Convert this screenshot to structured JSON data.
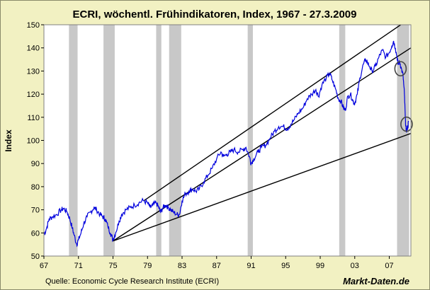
{
  "chart_data": {
    "type": "line",
    "title": "ECRI, wöchentl. Frühindikatoren, Index, 1967 - 27.3.2009",
    "xlabel": "",
    "ylabel": "Index",
    "xlim": [
      1967,
      2009.5
    ],
    "ylim": [
      50,
      150
    ],
    "y_ticks": [
      50,
      60,
      70,
      80,
      90,
      100,
      110,
      120,
      130,
      140,
      150
    ],
    "x_ticks": [
      {
        "value": 1967,
        "label": "67"
      },
      {
        "value": 1971,
        "label": "71"
      },
      {
        "value": 1975,
        "label": "75"
      },
      {
        "value": 1979,
        "label": "79"
      },
      {
        "value": 1983,
        "label": "83"
      },
      {
        "value": 1987,
        "label": "87"
      },
      {
        "value": 1991,
        "label": "91"
      },
      {
        "value": 1995,
        "label": "95"
      },
      {
        "value": 1999,
        "label": "99"
      },
      {
        "value": 2003,
        "label": "03"
      },
      {
        "value": 2007,
        "label": "07"
      }
    ],
    "recessions": [
      [
        1969.9,
        1970.9
      ],
      [
        1973.9,
        1975.2
      ],
      [
        1980.0,
        1980.6
      ],
      [
        1981.5,
        1982.9
      ],
      [
        1990.6,
        1991.2
      ],
      [
        2001.2,
        2001.9
      ],
      [
        2007.9,
        2009.3
      ]
    ],
    "series": [
      {
        "name": "ECRI",
        "color": "#0000dd",
        "points": [
          [
            1967.0,
            59
          ],
          [
            1967.3,
            62
          ],
          [
            1967.6,
            66
          ],
          [
            1968.0,
            67
          ],
          [
            1968.5,
            68
          ],
          [
            1969.0,
            70
          ],
          [
            1969.3,
            70.5
          ],
          [
            1969.7,
            69
          ],
          [
            1970.0,
            66
          ],
          [
            1970.3,
            62
          ],
          [
            1970.5,
            59
          ],
          [
            1970.8,
            55
          ],
          [
            1971.0,
            57
          ],
          [
            1971.3,
            60
          ],
          [
            1971.6,
            64
          ],
          [
            1972.0,
            67
          ],
          [
            1972.4,
            69
          ],
          [
            1972.8,
            71
          ],
          [
            1973.1,
            70
          ],
          [
            1973.5,
            68
          ],
          [
            1973.8,
            67
          ],
          [
            1974.1,
            66
          ],
          [
            1974.4,
            63
          ],
          [
            1974.7,
            60
          ],
          [
            1975.0,
            57
          ],
          [
            1975.3,
            60
          ],
          [
            1975.7,
            65
          ],
          [
            1976.0,
            68
          ],
          [
            1976.5,
            70
          ],
          [
            1977.0,
            71
          ],
          [
            1977.5,
            72
          ],
          [
            1978.0,
            73
          ],
          [
            1978.5,
            74
          ],
          [
            1979.0,
            73
          ],
          [
            1979.3,
            71
          ],
          [
            1979.6,
            72
          ],
          [
            1980.0,
            73
          ],
          [
            1980.3,
            71
          ],
          [
            1980.5,
            69
          ],
          [
            1980.8,
            71
          ],
          [
            1981.1,
            72
          ],
          [
            1981.4,
            71
          ],
          [
            1981.7,
            70
          ],
          [
            1982.0,
            69
          ],
          [
            1982.4,
            68
          ],
          [
            1982.7,
            68
          ],
          [
            1983.0,
            74
          ],
          [
            1983.4,
            77
          ],
          [
            1983.8,
            78
          ],
          [
            1984.2,
            79
          ],
          [
            1984.6,
            78
          ],
          [
            1985.0,
            79
          ],
          [
            1985.5,
            82
          ],
          [
            1986.0,
            85
          ],
          [
            1986.5,
            88
          ],
          [
            1987.0,
            92
          ],
          [
            1987.5,
            95
          ],
          [
            1987.8,
            93
          ],
          [
            1988.2,
            94
          ],
          [
            1988.6,
            95
          ],
          [
            1989.0,
            96
          ],
          [
            1989.5,
            95
          ],
          [
            1990.0,
            96
          ],
          [
            1990.4,
            97
          ],
          [
            1990.8,
            93
          ],
          [
            1991.0,
            90
          ],
          [
            1991.3,
            92
          ],
          [
            1991.8,
            95
          ],
          [
            1992.2,
            97
          ],
          [
            1992.7,
            98
          ],
          [
            1993.2,
            101
          ],
          [
            1993.7,
            104
          ],
          [
            1994.2,
            106
          ],
          [
            1994.7,
            106
          ],
          [
            1995.2,
            105
          ],
          [
            1995.6,
            107
          ],
          [
            1996.0,
            109
          ],
          [
            1996.5,
            112
          ],
          [
            1997.0,
            114
          ],
          [
            1997.5,
            118
          ],
          [
            1998.0,
            120
          ],
          [
            1998.5,
            122
          ],
          [
            1998.8,
            119
          ],
          [
            1999.2,
            124
          ],
          [
            1999.7,
            127
          ],
          [
            2000.1,
            129
          ],
          [
            2000.4,
            126
          ],
          [
            2000.8,
            122
          ],
          [
            2001.1,
            118
          ],
          [
            2001.4,
            117
          ],
          [
            2001.7,
            114
          ],
          [
            2001.9,
            113
          ],
          [
            2002.2,
            119
          ],
          [
            2002.5,
            120
          ],
          [
            2002.8,
            117
          ],
          [
            2003.0,
            116
          ],
          [
            2003.3,
            120
          ],
          [
            2003.6,
            127
          ],
          [
            2004.0,
            133
          ],
          [
            2004.3,
            135
          ],
          [
            2004.7,
            132
          ],
          [
            2005.0,
            130
          ],
          [
            2005.4,
            132
          ],
          [
            2005.8,
            136
          ],
          [
            2006.2,
            139
          ],
          [
            2006.6,
            136
          ],
          [
            2007.0,
            138
          ],
          [
            2007.3,
            141
          ],
          [
            2007.5,
            143
          ],
          [
            2007.7,
            140
          ],
          [
            2007.9,
            136
          ],
          [
            2008.0,
            133
          ],
          [
            2008.2,
            134
          ],
          [
            2008.4,
            131
          ],
          [
            2008.6,
            128
          ],
          [
            2008.75,
            120
          ],
          [
            2008.85,
            110
          ],
          [
            2008.95,
            104
          ],
          [
            2009.05,
            105
          ],
          [
            2009.15,
            106
          ],
          [
            2009.23,
            108
          ]
        ]
      }
    ],
    "trend_lines": [
      {
        "from": [
          1975.0,
          56.5
        ],
        "to": [
          2009.5,
          103
        ]
      },
      {
        "from": [
          1975.0,
          56.5
        ],
        "to": [
          2009.5,
          140
        ]
      },
      {
        "from": [
          1978.6,
          74
        ],
        "to": [
          2009.5,
          153
        ]
      }
    ],
    "highlight_circles": [
      {
        "x": 2008.3,
        "y": 131
      },
      {
        "x": 2009.0,
        "y": 107
      }
    ],
    "source": "Quelle: Economic Cycle Research Institute (ECRI)",
    "brand": "Markt-Daten.de",
    "colors": {
      "background": "#f2f1c2",
      "plot": "#ffffff",
      "recession": "#c8c8c8",
      "line": "#0000dd",
      "trend": "#000000"
    }
  }
}
